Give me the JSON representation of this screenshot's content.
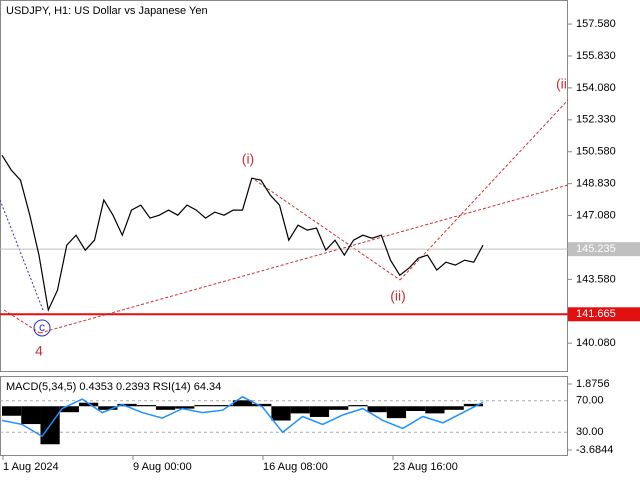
{
  "chart_data": {
    "type": "line",
    "title": "USDJPY, H1:  US Dollar vs Japanese Yen",
    "color": "#000000",
    "values": [
      150.39,
      149.57,
      149.02,
      147.1,
      144.9,
      141.9,
      142.99,
      145.46,
      146.0,
      145.18,
      145.73,
      147.93,
      147.1,
      146.0,
      147.38,
      147.65,
      146.94,
      147.1,
      147.38,
      147.1,
      147.65,
      147.38,
      146.94,
      147.27,
      147.1,
      147.38,
      147.38,
      149.13,
      149.02,
      148.2,
      147.65,
      145.73,
      146.55,
      146.28,
      146.39,
      145.18,
      145.73,
      144.91,
      145.73,
      146.0,
      145.84,
      146.0,
      144.63,
      143.81,
      144.2,
      144.74,
      144.91,
      144.09,
      144.52,
      144.36,
      144.63,
      144.52,
      145.46
    ],
    "ylim": [
      138.5,
      158.9
    ],
    "yticks": [
      {
        "value": 157.58,
        "label": "157.580"
      },
      {
        "value": 155.83,
        "label": "155.830"
      },
      {
        "value": 154.08,
        "label": "154.080"
      },
      {
        "value": 152.33,
        "label": "152.330"
      },
      {
        "value": 150.58,
        "label": "150.580"
      },
      {
        "value": 148.83,
        "label": "148.830"
      },
      {
        "value": 147.08,
        "label": "147.080"
      },
      {
        "value": 143.58,
        "label": "143.580"
      },
      {
        "value": 140.08,
        "label": "140.080"
      }
    ],
    "current_price": {
      "value": 145.235,
      "label": "145.235"
    },
    "level": {
      "value": 141.665,
      "label": "141.665"
    },
    "xtick_labels": [
      "1 Aug 2024",
      "9 Aug 00:00",
      "16 Aug 08:00",
      "23 Aug 16:00"
    ],
    "annotations": [
      "(i)",
      "(ii)",
      "(ii",
      "c",
      "4"
    ],
    "indicator": {
      "title": "MACD(5,34,5) 0.4353 0.2393 RSI(14) 64.34",
      "macd_lim": [
        -3.6844,
        1.8756
      ],
      "macd_ticks": [
        {
          "value": 1.8756,
          "label": "1.8756"
        },
        {
          "value": -3.6844,
          "label": "-3.6844"
        }
      ],
      "histogram": [
        -0.8,
        -1.5,
        -3.2,
        -0.5,
        0.3,
        -0.3,
        0.2,
        0.1,
        -0.3,
        -0.2,
        0.1,
        0.1,
        0.5,
        0.2,
        -1.2,
        -0.6,
        -0.9,
        -0.3,
        0.1,
        -0.5,
        -1.0,
        -0.4,
        -0.6,
        -0.3,
        0.2
      ],
      "rsi_lim": [
        0,
        100
      ],
      "rsi_ticks": [
        {
          "value": 70,
          "label": "70.00"
        },
        {
          "value": 30,
          "label": "30.00"
        }
      ],
      "rsi": [
        45,
        40,
        25,
        60,
        72,
        55,
        65,
        55,
        48,
        60,
        55,
        58,
        75,
        62,
        30,
        50,
        40,
        52,
        60,
        45,
        35,
        50,
        42,
        55,
        68
      ],
      "rsi_color": "#1e90ff"
    }
  }
}
